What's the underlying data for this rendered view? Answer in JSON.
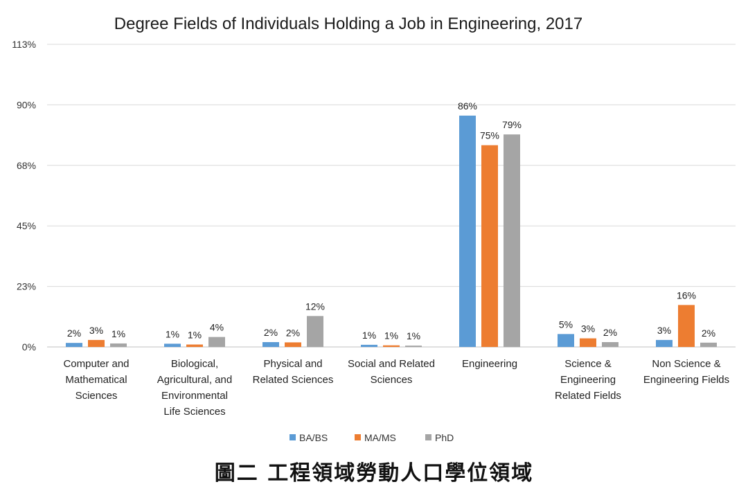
{
  "chart_data": {
    "type": "bar",
    "title": "Degree Fields of Individuals Holding a Job in Engineering, 2017",
    "categories": [
      [
        "Computer and",
        "Mathematical",
        "Sciences"
      ],
      [
        "Biological,",
        "Agricultural, and",
        "Environmental",
        "Life Sciences"
      ],
      [
        "Physical and",
        "Related Sciences"
      ],
      [
        "Social and Related",
        "Sciences"
      ],
      [
        "Engineering"
      ],
      [
        "Science &",
        "Engineering",
        "Related Fields"
      ],
      [
        "Non Science &",
        "Engineering Fields"
      ]
    ],
    "series": [
      {
        "name": "BA/BS",
        "color": "#5B9BD5",
        "values": [
          1.5,
          1.2,
          1.8,
          0.8,
          86,
          4.8,
          2.6
        ],
        "labels": [
          "2%",
          "1%",
          "2%",
          "1%",
          "86%",
          "5%",
          "3%"
        ]
      },
      {
        "name": "MA/MS",
        "color": "#ED7D31",
        "values": [
          2.6,
          0.9,
          1.7,
          0.6,
          75,
          3.2,
          15.6
        ],
        "labels": [
          "3%",
          "1%",
          "2%",
          "1%",
          "75%",
          "3%",
          "16%"
        ]
      },
      {
        "name": "PhD",
        "color": "#A5A5A5",
        "values": [
          1.3,
          3.7,
          11.5,
          0.5,
          79,
          1.8,
          1.6
        ],
        "labels": [
          "1%",
          "4%",
          "12%",
          "1%",
          "79%",
          "2%",
          "2%"
        ]
      }
    ],
    "y_ticks": [
      "0%",
      "23%",
      "45%",
      "68%",
      "90%",
      "113%"
    ],
    "ylim": [
      0,
      112.5
    ],
    "grid": true,
    "legend": "bottom"
  },
  "caption": "圖二  工程領域勞動人口學位領域"
}
